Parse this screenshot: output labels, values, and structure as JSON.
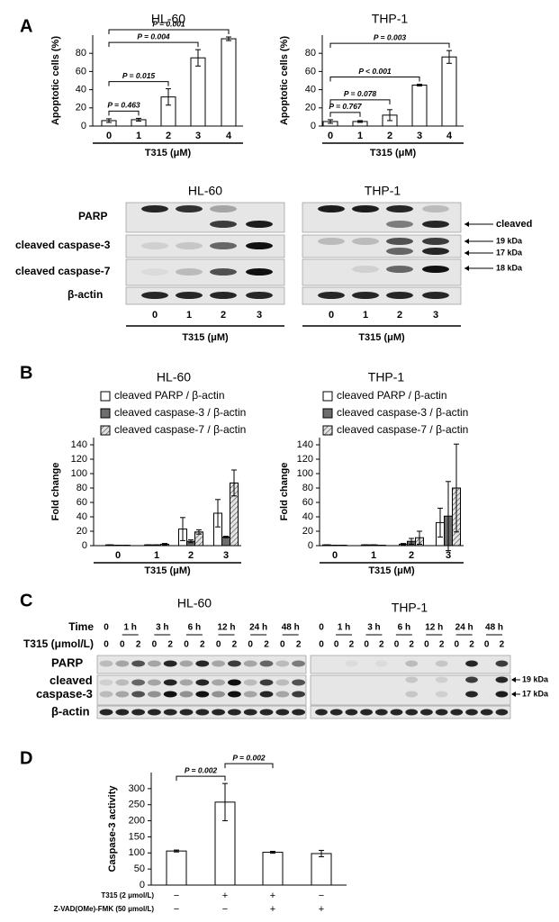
{
  "panel_labels": [
    "A",
    "B",
    "C",
    "D"
  ],
  "chart_data": [
    {
      "type": "bar",
      "title": "HL-60",
      "ylabel": "Apoptotic cells (%)",
      "xlabel": "T315 (μM)",
      "categories": [
        "0",
        "1",
        "2",
        "3",
        "4"
      ],
      "values": [
        6,
        7,
        32,
        75,
        96
      ],
      "errors": [
        2,
        1.5,
        9,
        9,
        2
      ],
      "color": "#ffffff",
      "ylim": [
        0,
        100
      ],
      "yticks": [
        0,
        20,
        40,
        60,
        80
      ],
      "annotations": [
        {
          "text": "P = 0.463",
          "from": 0,
          "to": 1
        },
        {
          "text": "P = 0.015",
          "from": 0,
          "to": 2
        },
        {
          "text": "P = 0.004",
          "from": 0,
          "to": 3
        },
        {
          "text": "P = 0.001",
          "from": 0,
          "to": 4
        }
      ]
    },
    {
      "type": "bar",
      "title": "THP-1",
      "ylabel": "Apoptotic cells (%)",
      "xlabel": "T315 (μM)",
      "categories": [
        "0",
        "1",
        "2",
        "3",
        "4"
      ],
      "values": [
        5,
        5,
        12,
        45,
        76
      ],
      "errors": [
        2,
        1,
        6,
        1,
        7
      ],
      "color": "#ffffff",
      "ylim": [
        0,
        100
      ],
      "yticks": [
        0,
        20,
        40,
        60,
        80
      ],
      "annotations": [
        {
          "text": "P = 0.767",
          "from": 0,
          "to": 1
        },
        {
          "text": "P = 0.078",
          "from": 0,
          "to": 2
        },
        {
          "text": "P < 0.001",
          "from": 0,
          "to": 3
        },
        {
          "text": "P = 0.003",
          "from": 0,
          "to": 4
        }
      ]
    },
    {
      "type": "bar",
      "title": "HL-60",
      "ylabel": "Fold change",
      "xlabel": "T315 (μM)",
      "categories": [
        "0",
        "1",
        "2",
        "3"
      ],
      "ylim": [
        0,
        150
      ],
      "yticks": [
        0,
        20,
        40,
        60,
        80,
        100,
        120,
        140
      ],
      "series": [
        {
          "name": "cleaved PARP / β-actin",
          "color": "#ffffff",
          "values": [
            1,
            1,
            23,
            45
          ],
          "errors": [
            0,
            0,
            16,
            19
          ]
        },
        {
          "name": "cleaved caspase-3 / β-actin",
          "color": "#6d6d6d",
          "values": [
            0.5,
            1,
            6,
            12
          ],
          "errors": [
            0,
            0,
            2,
            1
          ]
        },
        {
          "name": "cleaved caspase-7 / β-actin",
          "color": "#c8c8c8",
          "hatch": true,
          "values": [
            0.5,
            2,
            19,
            87
          ],
          "errors": [
            0,
            1,
            3,
            18
          ]
        }
      ]
    },
    {
      "type": "bar",
      "title": "THP-1",
      "ylabel": "Fold change",
      "xlabel": "T315 (μM)",
      "categories": [
        "0",
        "1",
        "2",
        "3"
      ],
      "ylim": [
        0,
        150
      ],
      "yticks": [
        0,
        20,
        40,
        60,
        80,
        100,
        120,
        140
      ],
      "series": [
        {
          "name": "cleaved PARP / β-actin",
          "color": "#ffffff",
          "values": [
            1,
            1,
            2,
            32
          ],
          "errors": [
            0,
            0,
            1,
            20
          ]
        },
        {
          "name": "cleaved caspase-3 / β-actin",
          "color": "#6d6d6d",
          "values": [
            0.5,
            1,
            6,
            41
          ],
          "errors": [
            0,
            0,
            4,
            48
          ]
        },
        {
          "name": "cleaved caspase-7 / β-actin",
          "color": "#c8c8c8",
          "hatch": true,
          "values": [
            0.5,
            0.5,
            11,
            80
          ],
          "errors": [
            0,
            0,
            9,
            61
          ]
        }
      ]
    },
    {
      "type": "bar",
      "ylabel": "Caspase-3 activity",
      "values": [
        106,
        258,
        102,
        98
      ],
      "errors": [
        3,
        58,
        3,
        10
      ],
      "color": "#ffffff",
      "ylim": [
        0,
        350
      ],
      "yticks": [
        0,
        50,
        100,
        150,
        200,
        250,
        300
      ],
      "condition_rows": [
        {
          "label": "T315 (2 μmol/L)",
          "values": [
            "−",
            "+",
            "+",
            "−"
          ]
        },
        {
          "label": "Z-VAD(OMe)-FMK (50 μmol/L)",
          "values": [
            "−",
            "−",
            "+",
            "+"
          ]
        }
      ],
      "annotations": [
        {
          "text": "P = 0.002",
          "from": 0,
          "to": 1
        },
        {
          "text": "P = 0.002",
          "from": 1,
          "to": 2
        }
      ]
    }
  ],
  "blot_a": {
    "titles": [
      "HL-60",
      "THP-1"
    ],
    "rows": [
      "PARP",
      "cleaved caspase-3",
      "cleaved caspase-7",
      "β-actin"
    ],
    "right_labels": [
      "cleaved",
      "19 kDa",
      "17 kDa",
      "18 kDa"
    ],
    "lanes": [
      "0",
      "1",
      "2",
      "3"
    ],
    "xlabel": "T315 (μM)"
  },
  "blot_c": {
    "titles": [
      "HL-60",
      "THP-1"
    ],
    "time_label": "Time",
    "dose_label": "T315 (μmol/L)",
    "times": [
      "0",
      "1 h",
      "3 h",
      "6 h",
      "12 h",
      "24 h",
      "48 h"
    ],
    "doses": [
      "0",
      "0",
      "2",
      "0",
      "2",
      "0",
      "2",
      "0",
      "2",
      "0",
      "2",
      "0",
      "2"
    ],
    "rows": [
      "PARP",
      "cleaved\ncaspase-3",
      "β-actin"
    ],
    "right_labels": [
      "19 kDa",
      "17 kDa"
    ]
  }
}
